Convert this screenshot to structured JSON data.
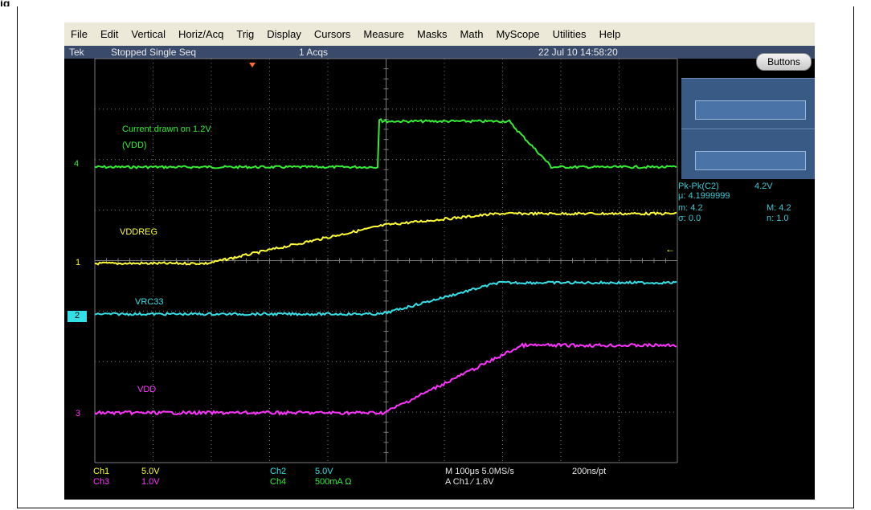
{
  "heading_fragment": "ig",
  "menu": [
    "File",
    "Edit",
    "Vertical",
    "Horiz/Acq",
    "Trig",
    "Display",
    "Cursors",
    "Measure",
    "Masks",
    "Math",
    "MyScope",
    "Utilities",
    "Help"
  ],
  "status": {
    "brand": "Tek",
    "state": "Stopped  Single Seq",
    "acqs": "1 Acqs",
    "datetime": "22 Jul 10 14:58:20"
  },
  "buttons_label": "Buttons",
  "measurements": {
    "line1_name": "Pk-Pk(C2)",
    "line1_value": "4.2V",
    "line2": "μ: 4.1999999",
    "line3_left": "m: 4.2",
    "line3_right": "M: 4.2",
    "line4_left": "σ: 0.0",
    "line4_right": "n: 1.0"
  },
  "trace_labels": {
    "current_line1": "Current drawn on 1.2V",
    "current_line2": "(VDD)",
    "vddreg": "VDDREG",
    "vrc33": "VRC33",
    "vdd": "VDD"
  },
  "channel_markers": {
    "ch4": "4",
    "ch1": "1",
    "ch2": "2",
    "ch3": "3"
  },
  "bottom": {
    "ch1_name": "Ch1",
    "ch1_scale": "5.0V",
    "ch3_name": "Ch3",
    "ch3_scale": "1.0V",
    "ch2_name": "Ch2",
    "ch2_scale": "5.0V",
    "ch4_name": "Ch4",
    "ch4_scale": "500mA  Ω",
    "timebase": "M 100μs 5.0MS/s",
    "pts": "200ns/pt",
    "trigger": "A  Ch1  ⁄  1.6V"
  },
  "colors": {
    "ch1": "#ffff33",
    "ch2": "#33e0e8",
    "ch3": "#ff33ff",
    "ch4": "#33ee33",
    "grid": "#7a7a7a",
    "measure": "#39c8d4"
  }
}
